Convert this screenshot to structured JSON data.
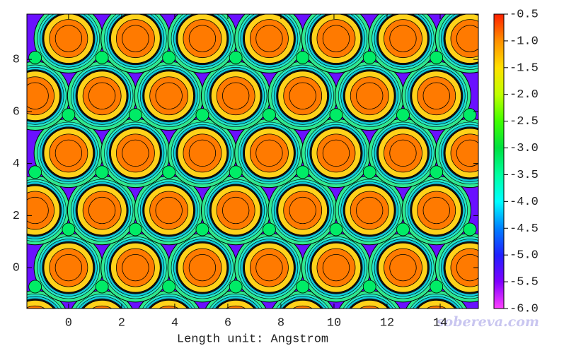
{
  "chart_data": {
    "type": "contour",
    "xlabel": "Length unit: Angstrom",
    "watermark": "sobereva.com",
    "xlim": [
      -1.57,
      15.44
    ],
    "ylim": [
      -1.57,
      9.74
    ],
    "xticks": [
      0,
      2,
      4,
      6,
      8,
      10,
      12,
      14
    ],
    "yticks": [
      0,
      2,
      4,
      6,
      8
    ],
    "clim": [
      -6.0,
      -0.5
    ],
    "cticks": [
      -0.5,
      {
        "value": -1.0,
        "label": "-1.0"
      },
      -1.5,
      {
        "value": -2.0,
        "label": "-2.0"
      },
      -2.5,
      {
        "value": -3.0,
        "label": "-3.0"
      },
      -3.5,
      {
        "value": -4.0,
        "label": "-4.0"
      },
      -4.5,
      {
        "value": -5.0,
        "label": "-5.0"
      },
      -5.5,
      {
        "value": -6.0,
        "label": "-6.0"
      }
    ],
    "colorscale": [
      "#ff40ff",
      "#8000ff",
      "#2020ff",
      "#0080ff",
      "#00ffff",
      "#00ffa0",
      "#00e040",
      "#40ff00",
      "#c0ff00",
      "#ffe000",
      "#ff9000",
      "#ff2000"
    ],
    "series": [
      {
        "x": [
          -1.26,
          1.26,
          3.78,
          6.3,
          8.82,
          11.34,
          13.86,
          0,
          2.52,
          5.04,
          7.56,
          10.08,
          12.6,
          15.12,
          -1.26,
          1.26,
          3.78,
          6.3,
          8.82,
          11.34,
          13.86,
          0,
          2.52,
          5.04,
          7.56,
          10.08,
          12.6,
          15.12,
          -1.26,
          1.26,
          3.78,
          6.3,
          8.82,
          11.34,
          13.86,
          0,
          2.52,
          5.04,
          7.56,
          10.08,
          12.6,
          15.12
        ],
        "y": [
          -2.2,
          -2.2,
          -2.2,
          -2.2,
          -2.2,
          -2.2,
          -2.2,
          0,
          0,
          0,
          0,
          0,
          0,
          0,
          2.2,
          2.2,
          2.2,
          2.2,
          2.2,
          2.2,
          2.2,
          4.4,
          4.4,
          4.4,
          4.4,
          4.4,
          4.4,
          4.4,
          6.6,
          6.6,
          6.6,
          6.6,
          6.6,
          6.6,
          6.6,
          8.8,
          8.8,
          8.8,
          8.8,
          8.8,
          8.8,
          8.8
        ],
        "values": [
          -0.9,
          -0.9,
          -0.9,
          -0.9,
          -0.9,
          -0.9,
          -0.9,
          -0.9,
          -0.9,
          -0.9,
          -0.9,
          -0.9,
          -0.9,
          -0.9,
          -0.9,
          -0.9,
          -0.9,
          -0.9,
          -0.9,
          -0.9,
          -0.9,
          -0.9,
          -0.9,
          -0.9,
          -0.9,
          -0.9,
          -0.9,
          -0.9,
          -0.9,
          -0.9,
          -0.9,
          -0.9,
          -0.9,
          -0.9,
          -0.9,
          -0.9,
          -0.9,
          -0.9,
          -0.9,
          -0.9,
          -0.9,
          -0.9
        ]
      },
      {
        "x": [
          -1.26,
          1.26,
          3.78,
          6.3,
          8.82,
          11.34,
          13.86,
          0,
          2.52,
          5.04,
          7.56,
          10.08,
          12.6,
          15.12,
          -1.26,
          1.26,
          3.78,
          6.3,
          8.82,
          11.34,
          13.86,
          0,
          2.52,
          5.04,
          7.56,
          10.08,
          12.6,
          15.12,
          -1.26,
          1.26,
          3.78,
          6.3,
          8.82,
          11.34,
          13.86
        ],
        "y": [
          -0.73,
          -0.73,
          -0.73,
          -0.73,
          -0.73,
          -0.73,
          -0.73,
          1.47,
          1.47,
          1.47,
          1.47,
          1.47,
          1.47,
          1.47,
          3.67,
          3.67,
          3.67,
          3.67,
          3.67,
          3.67,
          3.67,
          5.87,
          5.87,
          5.87,
          5.87,
          5.87,
          5.87,
          5.87,
          8.07,
          8.07,
          8.07,
          8.07,
          8.07,
          8.07,
          8.07
        ],
        "values": [
          -3.2,
          -3.2,
          -3.2,
          -3.2,
          -3.2,
          -3.2,
          -3.2,
          -3.2,
          -3.2,
          -3.2,
          -3.2,
          -3.2,
          -3.2,
          -3.2,
          -3.2,
          -3.2,
          -3.2,
          -3.2,
          -3.2,
          -3.2,
          -3.2,
          -3.2,
          -3.2,
          -3.2,
          -3.2,
          -3.2,
          -3.2,
          -3.2,
          -3.2,
          -3.2,
          -3.2,
          -3.2,
          -3.2,
          -3.2,
          -3.2
        ]
      }
    ]
  }
}
